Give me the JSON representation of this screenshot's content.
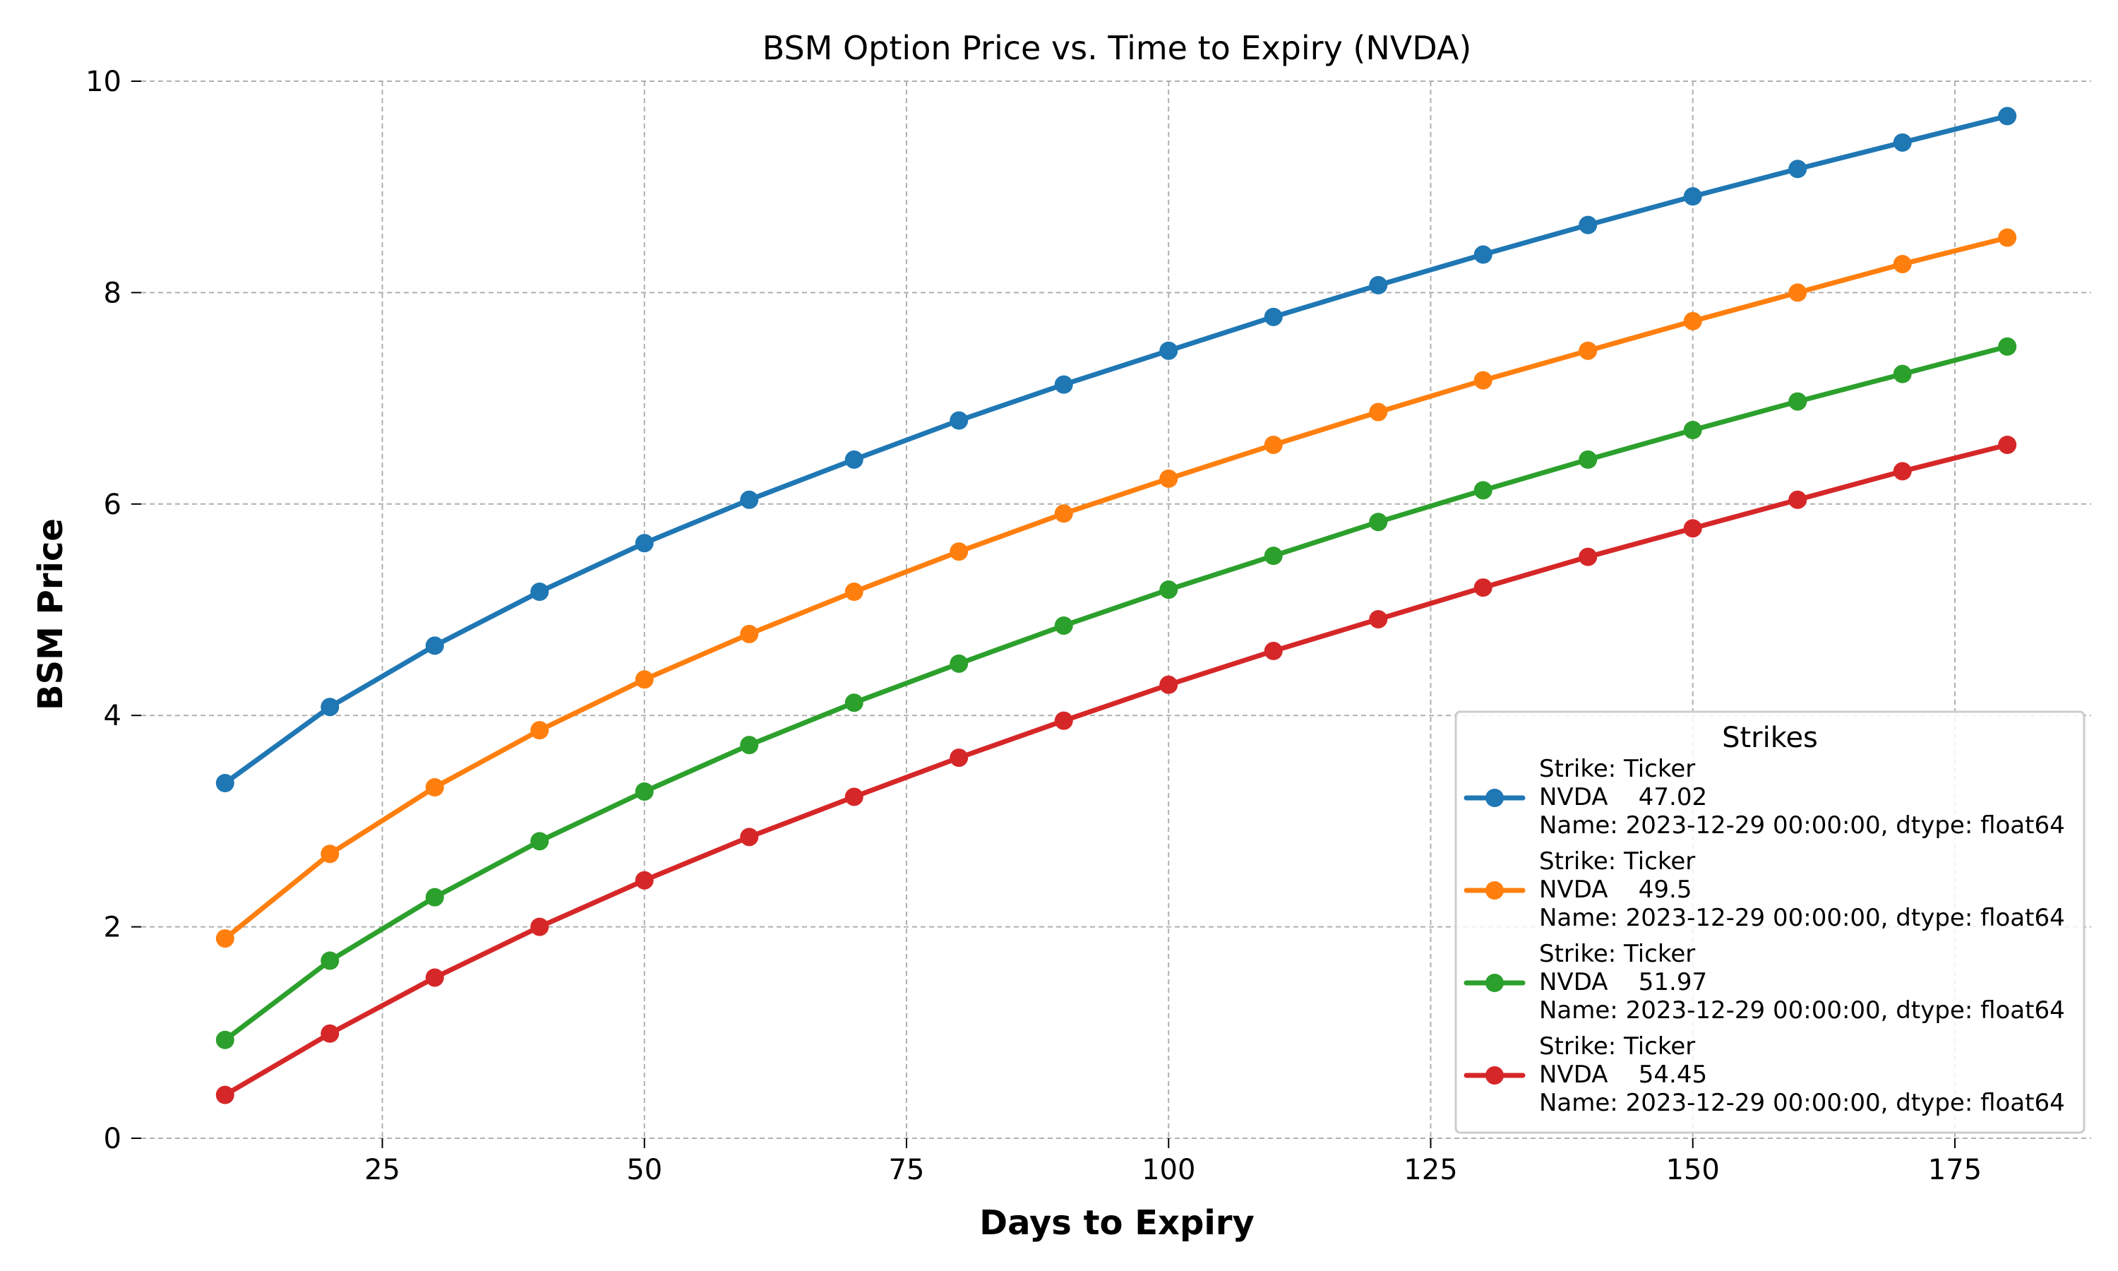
{
  "chart_data": {
    "type": "line",
    "title": "BSM Option Price vs. Time to Expiry (NVDA)",
    "xlabel": "Days to Expiry",
    "ylabel": "BSM Price",
    "xlim": [
      2,
      188
    ],
    "ylim": [
      0,
      10
    ],
    "xticks": [
      25,
      50,
      75,
      100,
      125,
      150,
      175
    ],
    "yticks": [
      0,
      2,
      4,
      6,
      8,
      10
    ],
    "grid": true,
    "legend_title": "Strikes",
    "legend_position": "lower-right",
    "x": [
      10,
      20,
      30,
      40,
      50,
      60,
      70,
      80,
      90,
      100,
      110,
      120,
      130,
      140,
      150,
      160,
      170,
      180
    ],
    "series": [
      {
        "label_lines": [
          "Strike: Ticker",
          "NVDA    47.02",
          "Name: 2023-12-29 00:00:00, dtype: float64"
        ],
        "color": "#1f77b4",
        "values": [
          3.36,
          4.08,
          4.66,
          5.17,
          5.63,
          6.04,
          6.42,
          6.79,
          7.13,
          7.45,
          7.77,
          8.07,
          8.36,
          8.64,
          8.91,
          9.17,
          9.42,
          9.67
        ]
      },
      {
        "label_lines": [
          "Strike: Ticker",
          "NVDA    49.5",
          "Name: 2023-12-29 00:00:00, dtype: float64"
        ],
        "color": "#ff7f0e",
        "values": [
          1.89,
          2.69,
          3.32,
          3.86,
          4.34,
          4.77,
          5.17,
          5.55,
          5.91,
          6.24,
          6.56,
          6.87,
          7.17,
          7.45,
          7.73,
          8.0,
          8.27,
          8.52
        ]
      },
      {
        "label_lines": [
          "Strike: Ticker",
          "NVDA    51.97",
          "Name: 2023-12-29 00:00:00, dtype: float64"
        ],
        "color": "#2ca02c",
        "values": [
          0.93,
          1.68,
          2.28,
          2.81,
          3.28,
          3.72,
          4.12,
          4.49,
          4.85,
          5.19,
          5.51,
          5.83,
          6.13,
          6.42,
          6.7,
          6.97,
          7.23,
          7.49
        ]
      },
      {
        "label_lines": [
          "Strike: Ticker",
          "NVDA    54.45",
          "Name: 2023-12-29 00:00:00, dtype: float64"
        ],
        "color": "#d62728",
        "values": [
          0.41,
          0.99,
          1.52,
          2.0,
          2.44,
          2.85,
          3.23,
          3.6,
          3.95,
          4.29,
          4.61,
          4.91,
          5.21,
          5.5,
          5.77,
          6.04,
          6.31,
          6.56
        ]
      }
    ]
  }
}
